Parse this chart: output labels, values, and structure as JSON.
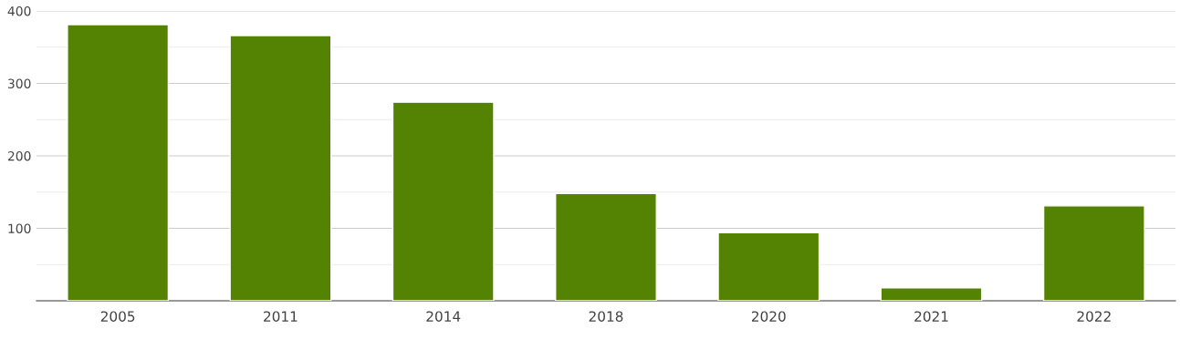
{
  "chart_data": {
    "type": "bar",
    "categories": [
      "2005",
      "2011",
      "2014",
      "2018",
      "2020",
      "2021",
      "2022"
    ],
    "values": [
      381,
      366,
      274,
      148,
      94,
      18,
      131
    ],
    "color": "#548203",
    "ylim": [
      0,
      400
    ],
    "yticks": [
      {
        "value": 50,
        "label": null
      },
      100,
      {
        "value": 150,
        "label": null
      },
      200,
      {
        "value": 250,
        "label": null
      },
      300,
      {
        "value": 350,
        "label": null
      },
      400
    ],
    "grid": "y",
    "legend": false
  }
}
